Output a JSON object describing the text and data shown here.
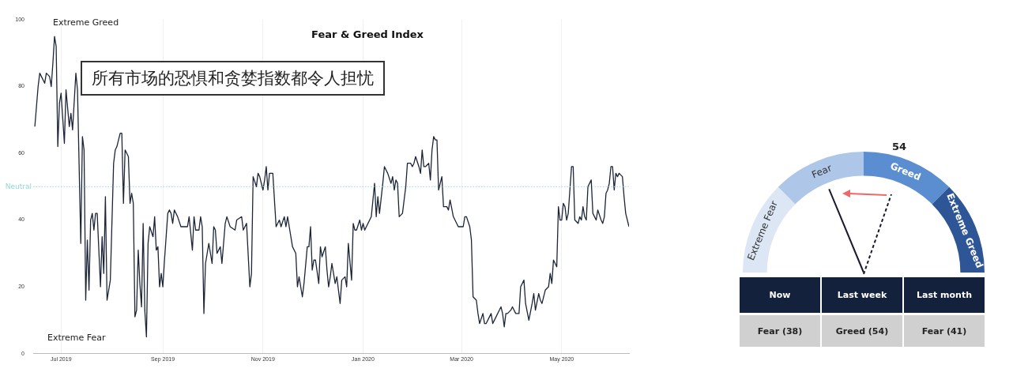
{
  "chart_data": [
    {
      "type": "line",
      "title": "Fear & Greed Index",
      "marker": "none",
      "grid": "x",
      "x": [
        "2019-06-15",
        "2019-06-17",
        "2019-06-18",
        "2019-06-21",
        "2019-06-22",
        "2019-06-24",
        "2019-06-25",
        "2019-06-26",
        "2019-06-27",
        "2019-06-28",
        "2019-06-29",
        "2019-06-30",
        "2019-07-01",
        "2019-07-03",
        "2019-07-04",
        "2019-07-06",
        "2019-07-07",
        "2019-07-08",
        "2019-07-10",
        "2019-07-11",
        "2019-07-13",
        "2019-07-14",
        "2019-07-15",
        "2019-07-16",
        "2019-07-17",
        "2019-07-18",
        "2019-07-19",
        "2019-07-20",
        "2019-07-21",
        "2019-07-22",
        "2019-07-23",
        "2019-07-25",
        "2019-07-26",
        "2019-07-27",
        "2019-07-28",
        "2019-07-29",
        "2019-07-31",
        "2019-08-02",
        "2019-08-03",
        "2019-08-04",
        "2019-08-06",
        "2019-08-07",
        "2019-08-08",
        "2019-08-09",
        "2019-08-11",
        "2019-08-12",
        "2019-08-13",
        "2019-08-14",
        "2019-08-15",
        "2019-08-16",
        "2019-08-17",
        "2019-08-18",
        "2019-08-19",
        "2019-08-20",
        "2019-08-21",
        "2019-08-22",
        "2019-08-23",
        "2019-08-24",
        "2019-08-26",
        "2019-08-27",
        "2019-08-28",
        "2019-08-29",
        "2019-08-30",
        "2019-08-31",
        "2019-09-01",
        "2019-09-02",
        "2019-09-04",
        "2019-09-05",
        "2019-09-06",
        "2019-09-07",
        "2019-09-08",
        "2019-09-10",
        "2019-09-12",
        "2019-09-14",
        "2019-09-16",
        "2019-09-17",
        "2019-09-19",
        "2019-09-20",
        "2019-09-21",
        "2019-09-23",
        "2019-09-24",
        "2019-09-25",
        "2019-09-26",
        "2019-09-27",
        "2019-09-29",
        "2019-10-01",
        "2019-10-02",
        "2019-10-03",
        "2019-10-04",
        "2019-10-06",
        "2019-10-07",
        "2019-10-09",
        "2019-10-10",
        "2019-10-12",
        "2019-10-15",
        "2019-10-16",
        "2019-10-19",
        "2019-10-20",
        "2019-10-22",
        "2019-10-24",
        "2019-10-25",
        "2019-10-26",
        "2019-10-28",
        "2019-10-29",
        "2019-10-30",
        "2019-11-01",
        "2019-11-02",
        "2019-11-03",
        "2019-11-04",
        "2019-11-05",
        "2019-11-07",
        "2019-11-09",
        "2019-11-11",
        "2019-11-12",
        "2019-11-14",
        "2019-11-15",
        "2019-11-16",
        "2019-11-17",
        "2019-11-19",
        "2019-11-21",
        "2019-11-22",
        "2019-11-23",
        "2019-11-25",
        "2019-11-26",
        "2019-11-28",
        "2019-11-29",
        "2019-11-30",
        "2019-12-01",
        "2019-12-02",
        "2019-12-03",
        "2019-12-05",
        "2019-12-06",
        "2019-12-07",
        "2019-12-09",
        "2019-12-10",
        "2019-12-11",
        "2019-12-12",
        "2019-12-13",
        "2019-12-15",
        "2019-12-16",
        "2019-12-18",
        "2019-12-19",
        "2019-12-21",
        "2019-12-22",
        "2019-12-23",
        "2019-12-25",
        "2019-12-26",
        "2019-12-27",
        "2019-12-28",
        "2019-12-30",
        "2019-12-31",
        "2020-01-01",
        "2020-01-02",
        "2020-01-03",
        "2020-01-05",
        "2020-01-06",
        "2020-01-08",
        "2020-01-09",
        "2020-01-10",
        "2020-01-11",
        "2020-01-13",
        "2020-01-14",
        "2020-01-15",
        "2020-01-16",
        "2020-01-18",
        "2020-01-19",
        "2020-01-20",
        "2020-01-21",
        "2020-01-22",
        "2020-01-23",
        "2020-01-25",
        "2020-01-27",
        "2020-01-28",
        "2020-01-30",
        "2020-01-31",
        "2020-02-01",
        "2020-02-02",
        "2020-02-04",
        "2020-02-05",
        "2020-02-06",
        "2020-02-07",
        "2020-02-08",
        "2020-02-10",
        "2020-02-11",
        "2020-02-12",
        "2020-02-13",
        "2020-02-14",
        "2020-02-15",
        "2020-02-16",
        "2020-02-18",
        "2020-02-19",
        "2020-02-21",
        "2020-02-22",
        "2020-02-23",
        "2020-02-25",
        "2020-02-26",
        "2020-02-28",
        "2020-02-29",
        "2020-03-02",
        "2020-03-03",
        "2020-03-04",
        "2020-03-06",
        "2020-03-07",
        "2020-03-08",
        "2020-03-10",
        "2020-03-11",
        "2020-03-12",
        "2020-03-14",
        "2020-03-15",
        "2020-03-16",
        "2020-03-18",
        "2020-03-19",
        "2020-03-20",
        "2020-03-21",
        "2020-03-22",
        "2020-03-24",
        "2020-03-25",
        "2020-03-26",
        "2020-03-27",
        "2020-03-28",
        "2020-03-29",
        "2020-03-31",
        "2020-04-01",
        "2020-04-03",
        "2020-04-04",
        "2020-04-05",
        "2020-04-06",
        "2020-04-08",
        "2020-04-09",
        "2020-04-11",
        "2020-04-13",
        "2020-04-14",
        "2020-04-15",
        "2020-04-17",
        "2020-04-18",
        "2020-04-19",
        "2020-04-21",
        "2020-04-23",
        "2020-04-24",
        "2020-04-25",
        "2020-04-26",
        "2020-04-28",
        "2020-04-29",
        "2020-04-30",
        "2020-05-01",
        "2020-05-02",
        "2020-05-03",
        "2020-05-04",
        "2020-05-05",
        "2020-05-07",
        "2020-05-08",
        "2020-05-09",
        "2020-05-11",
        "2020-05-12",
        "2020-05-13",
        "2020-05-14",
        "2020-05-15",
        "2020-05-16",
        "2020-05-17",
        "2020-05-19",
        "2020-05-20",
        "2020-05-22",
        "2020-05-23",
        "2020-05-25",
        "2020-05-26",
        "2020-05-27",
        "2020-05-28",
        "2020-05-29",
        "2020-05-30",
        "2020-05-31",
        "2020-06-01",
        "2020-06-02",
        "2020-06-03",
        "2020-06-04",
        "2020-06-05",
        "2020-06-07",
        "2020-06-08",
        "2020-06-09",
        "2020-06-11"
      ],
      "series": [
        {
          "color": "#1c2438",
          "values": [
            68,
            80,
            84,
            81,
            84,
            83,
            80,
            87,
            95,
            92,
            62,
            75,
            78,
            63,
            79,
            68,
            72,
            67,
            84,
            79,
            33,
            65,
            61,
            16,
            34,
            19,
            40,
            42,
            37,
            42,
            42,
            20,
            35,
            24,
            47,
            16,
            22,
            57,
            61,
            62,
            66,
            66,
            45,
            61,
            59,
            45,
            48,
            45,
            11,
            13,
            31,
            21,
            14,
            39,
            13,
            5,
            33,
            38,
            35,
            41,
            31,
            32,
            20,
            24,
            20,
            28,
            42,
            43,
            42,
            39,
            43,
            41,
            38,
            38,
            38,
            41,
            31,
            41,
            37,
            37,
            41,
            38,
            12,
            27,
            33,
            27,
            38,
            37,
            30,
            32,
            27,
            39,
            41,
            38,
            37,
            40,
            41,
            37,
            39,
            20,
            24,
            53,
            50,
            54,
            53,
            49,
            52,
            56,
            49,
            54,
            54,
            38,
            40,
            38,
            41,
            38,
            41,
            38,
            32,
            30,
            20,
            23,
            17,
            21,
            32,
            32,
            38,
            25,
            28,
            28,
            21,
            32,
            29,
            32,
            25,
            20,
            23,
            27,
            21,
            23,
            15,
            22,
            23,
            20,
            33,
            22,
            39,
            37,
            37,
            40,
            37,
            39,
            37,
            38,
            40,
            41,
            51,
            41,
            47,
            42,
            51,
            56,
            55,
            54,
            51,
            53,
            49,
            52,
            51,
            41,
            42,
            50,
            57,
            57,
            56,
            57,
            59,
            56,
            54,
            61,
            56,
            56,
            57,
            52,
            61,
            65,
            64,
            64,
            49,
            53,
            44,
            44,
            43,
            46,
            41,
            40,
            38,
            38,
            38,
            41,
            41,
            38,
            34,
            17,
            16,
            12,
            9,
            12,
            9,
            9,
            11,
            12,
            9,
            10,
            11,
            13,
            14,
            12,
            8,
            12,
            12,
            13,
            14,
            12,
            12,
            12,
            20,
            22,
            15,
            10,
            15,
            18,
            13,
            18,
            16,
            15,
            19,
            20,
            24,
            21,
            28,
            26,
            44,
            40,
            40,
            45,
            44,
            40,
            42,
            56,
            56,
            40,
            39,
            41,
            40,
            44,
            41,
            40,
            50,
            52,
            42,
            40,
            43,
            40,
            39,
            41,
            48,
            49,
            51,
            56,
            56,
            49,
            54,
            53,
            54,
            53,
            47,
            42,
            38
          ]
        }
      ],
      "xlim": [
        "2019-06-14",
        "2020-06-11"
      ],
      "xticks": [
        {
          "value": "2019-07-01",
          "label": "Jul 2019"
        },
        {
          "value": "2019-09-01",
          "label": "Sep 2019"
        },
        {
          "value": "2019-11-01",
          "label": "Nov 2019"
        },
        {
          "value": "2020-01-01",
          "label": "Jan 2020"
        },
        {
          "value": "2020-03-01",
          "label": "Mar 2020"
        },
        {
          "value": "2020-05-01",
          "label": "May 2020"
        }
      ],
      "ylim": [
        0,
        100
      ],
      "yticks": [
        0,
        20,
        40,
        60,
        80,
        100
      ],
      "ref_lines": [
        {
          "axis": "y",
          "value": 50,
          "label": "Neutral",
          "color": "#8fdada",
          "line_style": "dotted"
        }
      ],
      "annotations": [
        "Extreme Greed",
        "Extreme Fear",
        "所有市场的恐惧和贪婪指数都令人担忧"
      ]
    },
    {
      "type": "donut",
      "categories": [
        "Extreme Fear",
        "Fear",
        "Greed",
        "Extreme Greed"
      ],
      "values": [
        25,
        25,
        25,
        25
      ],
      "colors": [
        "#dce6f4",
        "#aec7e8",
        "#5b8ed1",
        "#2e5596"
      ],
      "needle": "Fear",
      "annotations": [
        "54"
      ]
    },
    {
      "type": "other",
      "categories": [
        "Now",
        "Last week",
        "Last month"
      ],
      "values": [
        38,
        54,
        41
      ],
      "value_labels": [
        "Fear (38)",
        "Greed (54)",
        "Fear (41)"
      ]
    }
  ]
}
